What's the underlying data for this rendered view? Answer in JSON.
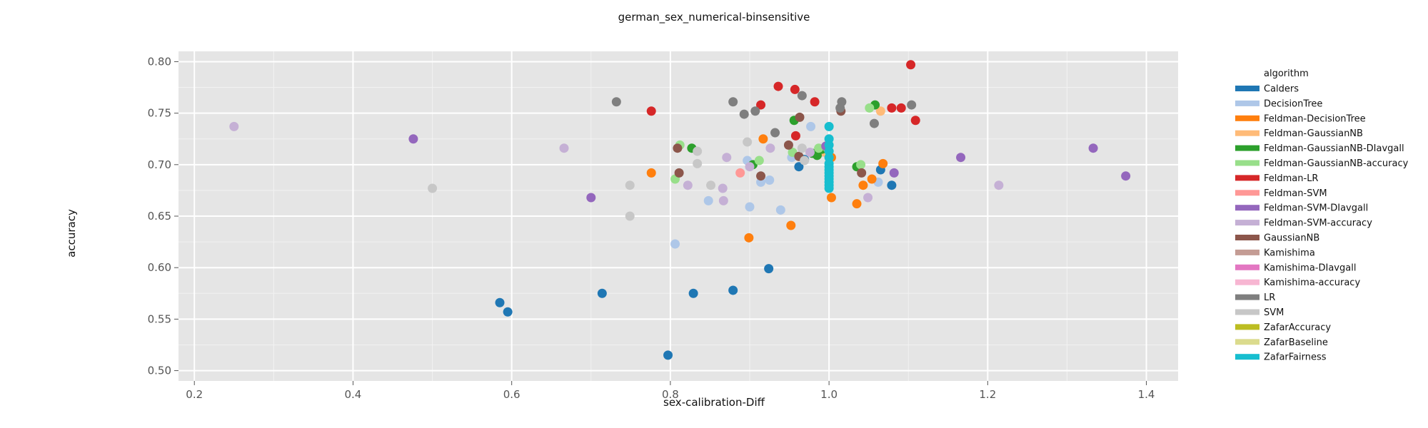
{
  "chart_data": {
    "type": "scatter",
    "title": "german_sex_numerical-binsensitive",
    "xlabel": "sex-calibration-Diff",
    "ylabel": "accuracy",
    "xlim": [
      0.18,
      1.44
    ],
    "ylim": [
      0.49,
      0.81
    ],
    "xticks": [
      0.2,
      0.4,
      0.6,
      0.8,
      1.0,
      1.2,
      1.4
    ],
    "xtick_labels": [
      "0.2",
      "0.4",
      "0.6",
      "0.8",
      "1.0",
      "1.2",
      "1.4"
    ],
    "yticks": [
      0.5,
      0.55,
      0.6,
      0.65,
      0.7,
      0.75,
      0.8
    ],
    "ytick_labels": [
      "0.50",
      "0.55",
      "0.60",
      "0.65",
      "0.70",
      "0.75",
      "0.80"
    ],
    "grid": true,
    "legend_title": "algorithm",
    "legend_position": "right",
    "series": [
      {
        "name": "Calders",
        "color": "#1f77b4",
        "points": [
          [
            0.585,
            0.566
          ],
          [
            0.595,
            0.557
          ],
          [
            0.714,
            0.575
          ],
          [
            0.797,
            0.515
          ],
          [
            0.829,
            0.575
          ],
          [
            0.879,
            0.578
          ],
          [
            0.924,
            0.599
          ],
          [
            0.962,
            0.698
          ],
          [
            1.065,
            0.695
          ],
          [
            1.079,
            0.68
          ],
          [
            0.969,
            0.705
          ]
        ]
      },
      {
        "name": "DecisionTree",
        "color": "#aec7e8",
        "points": [
          [
            0.806,
            0.623
          ],
          [
            0.848,
            0.665
          ],
          [
            0.9,
            0.659
          ],
          [
            0.939,
            0.656
          ],
          [
            0.914,
            0.683
          ],
          [
            0.925,
            0.685
          ],
          [
            0.897,
            0.704
          ],
          [
            0.953,
            0.707
          ],
          [
            0.977,
            0.737
          ],
          [
            1.062,
            0.683
          ],
          [
            0.99,
            0.712
          ]
        ]
      },
      {
        "name": "Feldman-DecisionTree",
        "color": "#ff7f0e",
        "points": [
          [
            0.899,
            0.629
          ],
          [
            0.952,
            0.641
          ],
          [
            0.776,
            0.692
          ],
          [
            0.917,
            0.725
          ],
          [
            1.003,
            0.668
          ],
          [
            1.035,
            0.662
          ],
          [
            1.043,
            0.68
          ],
          [
            1.054,
            0.686
          ],
          [
            1.068,
            0.701
          ],
          [
            1.003,
            0.707
          ]
        ]
      },
      {
        "name": "Feldman-GaussianNB",
        "color": "#ffbb78",
        "points": [
          [
            1.065,
            0.752
          ],
          [
            0.995,
            0.712
          ]
        ]
      },
      {
        "name": "Feldman-GaussianNB-DIavgall",
        "color": "#2ca02c",
        "points": [
          [
            0.827,
            0.716
          ],
          [
            0.904,
            0.7
          ],
          [
            0.956,
            0.743
          ],
          [
            0.979,
            0.711
          ],
          [
            0.985,
            0.709
          ],
          [
            1.035,
            0.698
          ],
          [
            1.058,
            0.758
          ],
          [
            0.991,
            0.715
          ]
        ]
      },
      {
        "name": "Feldman-GaussianNB-accuracy",
        "color": "#98df8a",
        "points": [
          [
            0.812,
            0.719
          ],
          [
            0.806,
            0.686
          ],
          [
            0.912,
            0.704
          ],
          [
            0.954,
            0.712
          ],
          [
            0.987,
            0.716
          ],
          [
            1.04,
            0.7
          ],
          [
            1.051,
            0.755
          ],
          [
            0.998,
            0.716
          ]
        ]
      },
      {
        "name": "Feldman-LR",
        "color": "#d62728",
        "points": [
          [
            0.776,
            0.752
          ],
          [
            0.914,
            0.758
          ],
          [
            0.936,
            0.776
          ],
          [
            0.957,
            0.773
          ],
          [
            0.958,
            0.728
          ],
          [
            0.982,
            0.761
          ],
          [
            1.079,
            0.755
          ],
          [
            1.091,
            0.755
          ],
          [
            1.103,
            0.797
          ],
          [
            1.109,
            0.743
          ]
        ]
      },
      {
        "name": "Feldman-SVM",
        "color": "#ff9896",
        "points": [
          [
            0.888,
            0.692
          ]
        ]
      },
      {
        "name": "Feldman-SVM-DIavgall",
        "color": "#9467bd",
        "points": [
          [
            0.476,
            0.725
          ],
          [
            0.7,
            0.668
          ],
          [
            1.082,
            0.692
          ],
          [
            1.166,
            0.707
          ],
          [
            1.333,
            0.716
          ],
          [
            1.374,
            0.689
          ],
          [
            0.996,
            0.718
          ]
        ]
      },
      {
        "name": "Feldman-SVM-accuracy",
        "color": "#c5b0d5",
        "points": [
          [
            0.25,
            0.737
          ],
          [
            0.666,
            0.716
          ],
          [
            0.822,
            0.68
          ],
          [
            0.866,
            0.677
          ],
          [
            0.867,
            0.665
          ],
          [
            0.871,
            0.707
          ],
          [
            0.9,
            0.698
          ],
          [
            0.926,
            0.716
          ],
          [
            1.049,
            0.668
          ],
          [
            1.214,
            0.68
          ],
          [
            0.976,
            0.712
          ]
        ]
      },
      {
        "name": "GaussianNB",
        "color": "#8c564b",
        "points": [
          [
            0.809,
            0.716
          ],
          [
            0.811,
            0.692
          ],
          [
            0.914,
            0.689
          ],
          [
            0.949,
            0.719
          ],
          [
            0.963,
            0.746
          ],
          [
            0.962,
            0.708
          ],
          [
            1.015,
            0.752
          ],
          [
            1.041,
            0.692
          ]
        ]
      },
      {
        "name": "LR",
        "color": "#7f7f7f",
        "points": [
          [
            0.732,
            0.761
          ],
          [
            0.879,
            0.761
          ],
          [
            0.893,
            0.749
          ],
          [
            0.907,
            0.752
          ],
          [
            0.932,
            0.731
          ],
          [
            0.966,
            0.767
          ],
          [
            1.014,
            0.755
          ],
          [
            1.016,
            0.761
          ],
          [
            1.057,
            0.74
          ],
          [
            1.104,
            0.758
          ]
        ]
      },
      {
        "name": "SVM",
        "color": "#c7c7c7",
        "points": [
          [
            0.5,
            0.677
          ],
          [
            0.749,
            0.68
          ],
          [
            0.749,
            0.65
          ],
          [
            0.834,
            0.713
          ],
          [
            0.834,
            0.701
          ],
          [
            0.851,
            0.68
          ],
          [
            0.897,
            0.722
          ],
          [
            0.966,
            0.716
          ],
          [
            0.969,
            0.704
          ]
        ]
      },
      {
        "name": "ZafarFairness",
        "color": "#17becf",
        "points": [
          [
            1.0,
            0.737
          ],
          [
            1.0,
            0.725
          ],
          [
            1.0,
            0.719
          ],
          [
            1.0,
            0.713
          ],
          [
            1.0,
            0.707
          ],
          [
            1.0,
            0.701
          ],
          [
            1.0,
            0.698
          ],
          [
            1.0,
            0.695
          ],
          [
            1.0,
            0.692
          ],
          [
            1.0,
            0.689
          ],
          [
            1.0,
            0.686
          ],
          [
            1.0,
            0.683
          ],
          [
            1.0,
            0.68
          ],
          [
            1.0,
            0.677
          ]
        ]
      }
    ],
    "legend_entries": [
      {
        "name": "Calders",
        "color": "#1f77b4"
      },
      {
        "name": "DecisionTree",
        "color": "#aec7e8"
      },
      {
        "name": "Feldman-DecisionTree",
        "color": "#ff7f0e"
      },
      {
        "name": "Feldman-GaussianNB",
        "color": "#ffbb78"
      },
      {
        "name": "Feldman-GaussianNB-DIavgall",
        "color": "#2ca02c"
      },
      {
        "name": "Feldman-GaussianNB-accuracy",
        "color": "#98df8a"
      },
      {
        "name": "Feldman-LR",
        "color": "#d62728"
      },
      {
        "name": "Feldman-SVM",
        "color": "#ff9896"
      },
      {
        "name": "Feldman-SVM-DIavgall",
        "color": "#9467bd"
      },
      {
        "name": "Feldman-SVM-accuracy",
        "color": "#c5b0d5"
      },
      {
        "name": "GaussianNB",
        "color": "#8c564b"
      },
      {
        "name": "Kamishima",
        "color": "#c49c94"
      },
      {
        "name": "Kamishima-DIavgall",
        "color": "#e377c2"
      },
      {
        "name": "Kamishima-accuracy",
        "color": "#f7b6d2"
      },
      {
        "name": "LR",
        "color": "#7f7f7f"
      },
      {
        "name": "SVM",
        "color": "#c7c7c7"
      },
      {
        "name": "ZafarAccuracy",
        "color": "#bcbd22"
      },
      {
        "name": "ZafarBaseline",
        "color": "#dbdb8d"
      },
      {
        "name": "ZafarFairness",
        "color": "#17becf"
      }
    ]
  }
}
